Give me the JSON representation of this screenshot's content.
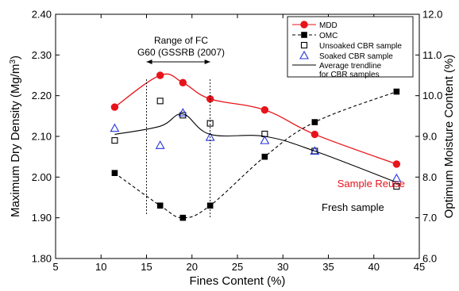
{
  "chart_data": {
    "type": "line",
    "xlabel": "Fines Content (%)",
    "ylabel_left": "Maximum Dry Density (Mg/m3)",
    "ylabel_left_parts": {
      "text": "Maximum Dry Density (Mg/m",
      "sup": "3",
      "close": ")"
    },
    "ylabel_right": "Optimum Moisture Content (%)",
    "xlim": [
      5,
      45
    ],
    "ylim_left": [
      1.8,
      2.4
    ],
    "ylim_right": [
      6.0,
      12.0
    ],
    "x_ticks": [
      5,
      10,
      15,
      20,
      25,
      30,
      35,
      40,
      45
    ],
    "x_tick_labels": [
      "5",
      "10",
      "15",
      "20",
      "25",
      "30",
      "35",
      "40",
      "45"
    ],
    "y_left_ticks": [
      1.8,
      1.9,
      2.0,
      2.1,
      2.2,
      2.3,
      2.4
    ],
    "y_left_tick_labels": [
      "1.80",
      "1.90",
      "2.00",
      "2.10",
      "2.20",
      "2.30",
      "2.40"
    ],
    "y_right_ticks": [
      6,
      7,
      8,
      9,
      10,
      11,
      12
    ],
    "y_right_tick_labels": [
      "6.0",
      "7.0",
      "8.0",
      "9.0",
      "10.0",
      "11.0",
      "12.0"
    ],
    "grid": false,
    "legend_position": "top-right",
    "series": [
      {
        "name": "MDD",
        "axis": "left",
        "marker": "filled-circle",
        "color": "#e8131a",
        "line": "solid",
        "x": [
          11.5,
          16.5,
          19,
          22,
          28,
          33.5,
          42.5
        ],
        "y": [
          2.172,
          2.25,
          2.232,
          2.192,
          2.165,
          2.105,
          2.032
        ]
      },
      {
        "name": "OMC",
        "axis": "right",
        "marker": "filled-square",
        "color": "#000000",
        "line": "dashed",
        "x": [
          11.5,
          16.5,
          19,
          22,
          28,
          33.5,
          42.5
        ],
        "y": [
          8.1,
          7.3,
          7.0,
          7.3,
          8.5,
          9.35,
          10.1
        ]
      },
      {
        "name": "Unsoaked CBR sample",
        "axis": "left",
        "marker": "open-square",
        "color": "#000000",
        "line": "none",
        "x": [
          11.5,
          16.5,
          19,
          22,
          28,
          33.5,
          42.5
        ],
        "y": [
          2.09,
          2.187,
          2.152,
          2.132,
          2.106,
          2.064,
          1.977
        ]
      },
      {
        "name": "Soaked CBR sample",
        "axis": "left",
        "marker": "open-triangle",
        "color": "#2233dd",
        "line": "none",
        "x": [
          11.5,
          16.5,
          19,
          22,
          28,
          33.5,
          42.5
        ],
        "y": [
          2.12,
          2.078,
          2.158,
          2.098,
          2.09,
          2.064,
          1.997
        ]
      },
      {
        "name": "Average trendline for CBR samples",
        "legend_lines": [
          "Average trendline",
          "for CBR samples"
        ],
        "axis": "left",
        "marker": "none",
        "color": "#000000",
        "line": "solid",
        "x": [
          11.5,
          16.5,
          19,
          22,
          28,
          33.5,
          42.5
        ],
        "y": [
          2.105,
          2.125,
          2.155,
          2.105,
          2.1,
          2.064,
          1.987
        ]
      }
    ],
    "annotations": {
      "range_label_line1": "Range of FC",
      "range_label_line2": "G60 (GSSRB (2007)",
      "range_x": [
        15,
        22
      ],
      "sample_reuse": "Sample Reuse",
      "fresh_sample": "Fresh sample"
    }
  }
}
